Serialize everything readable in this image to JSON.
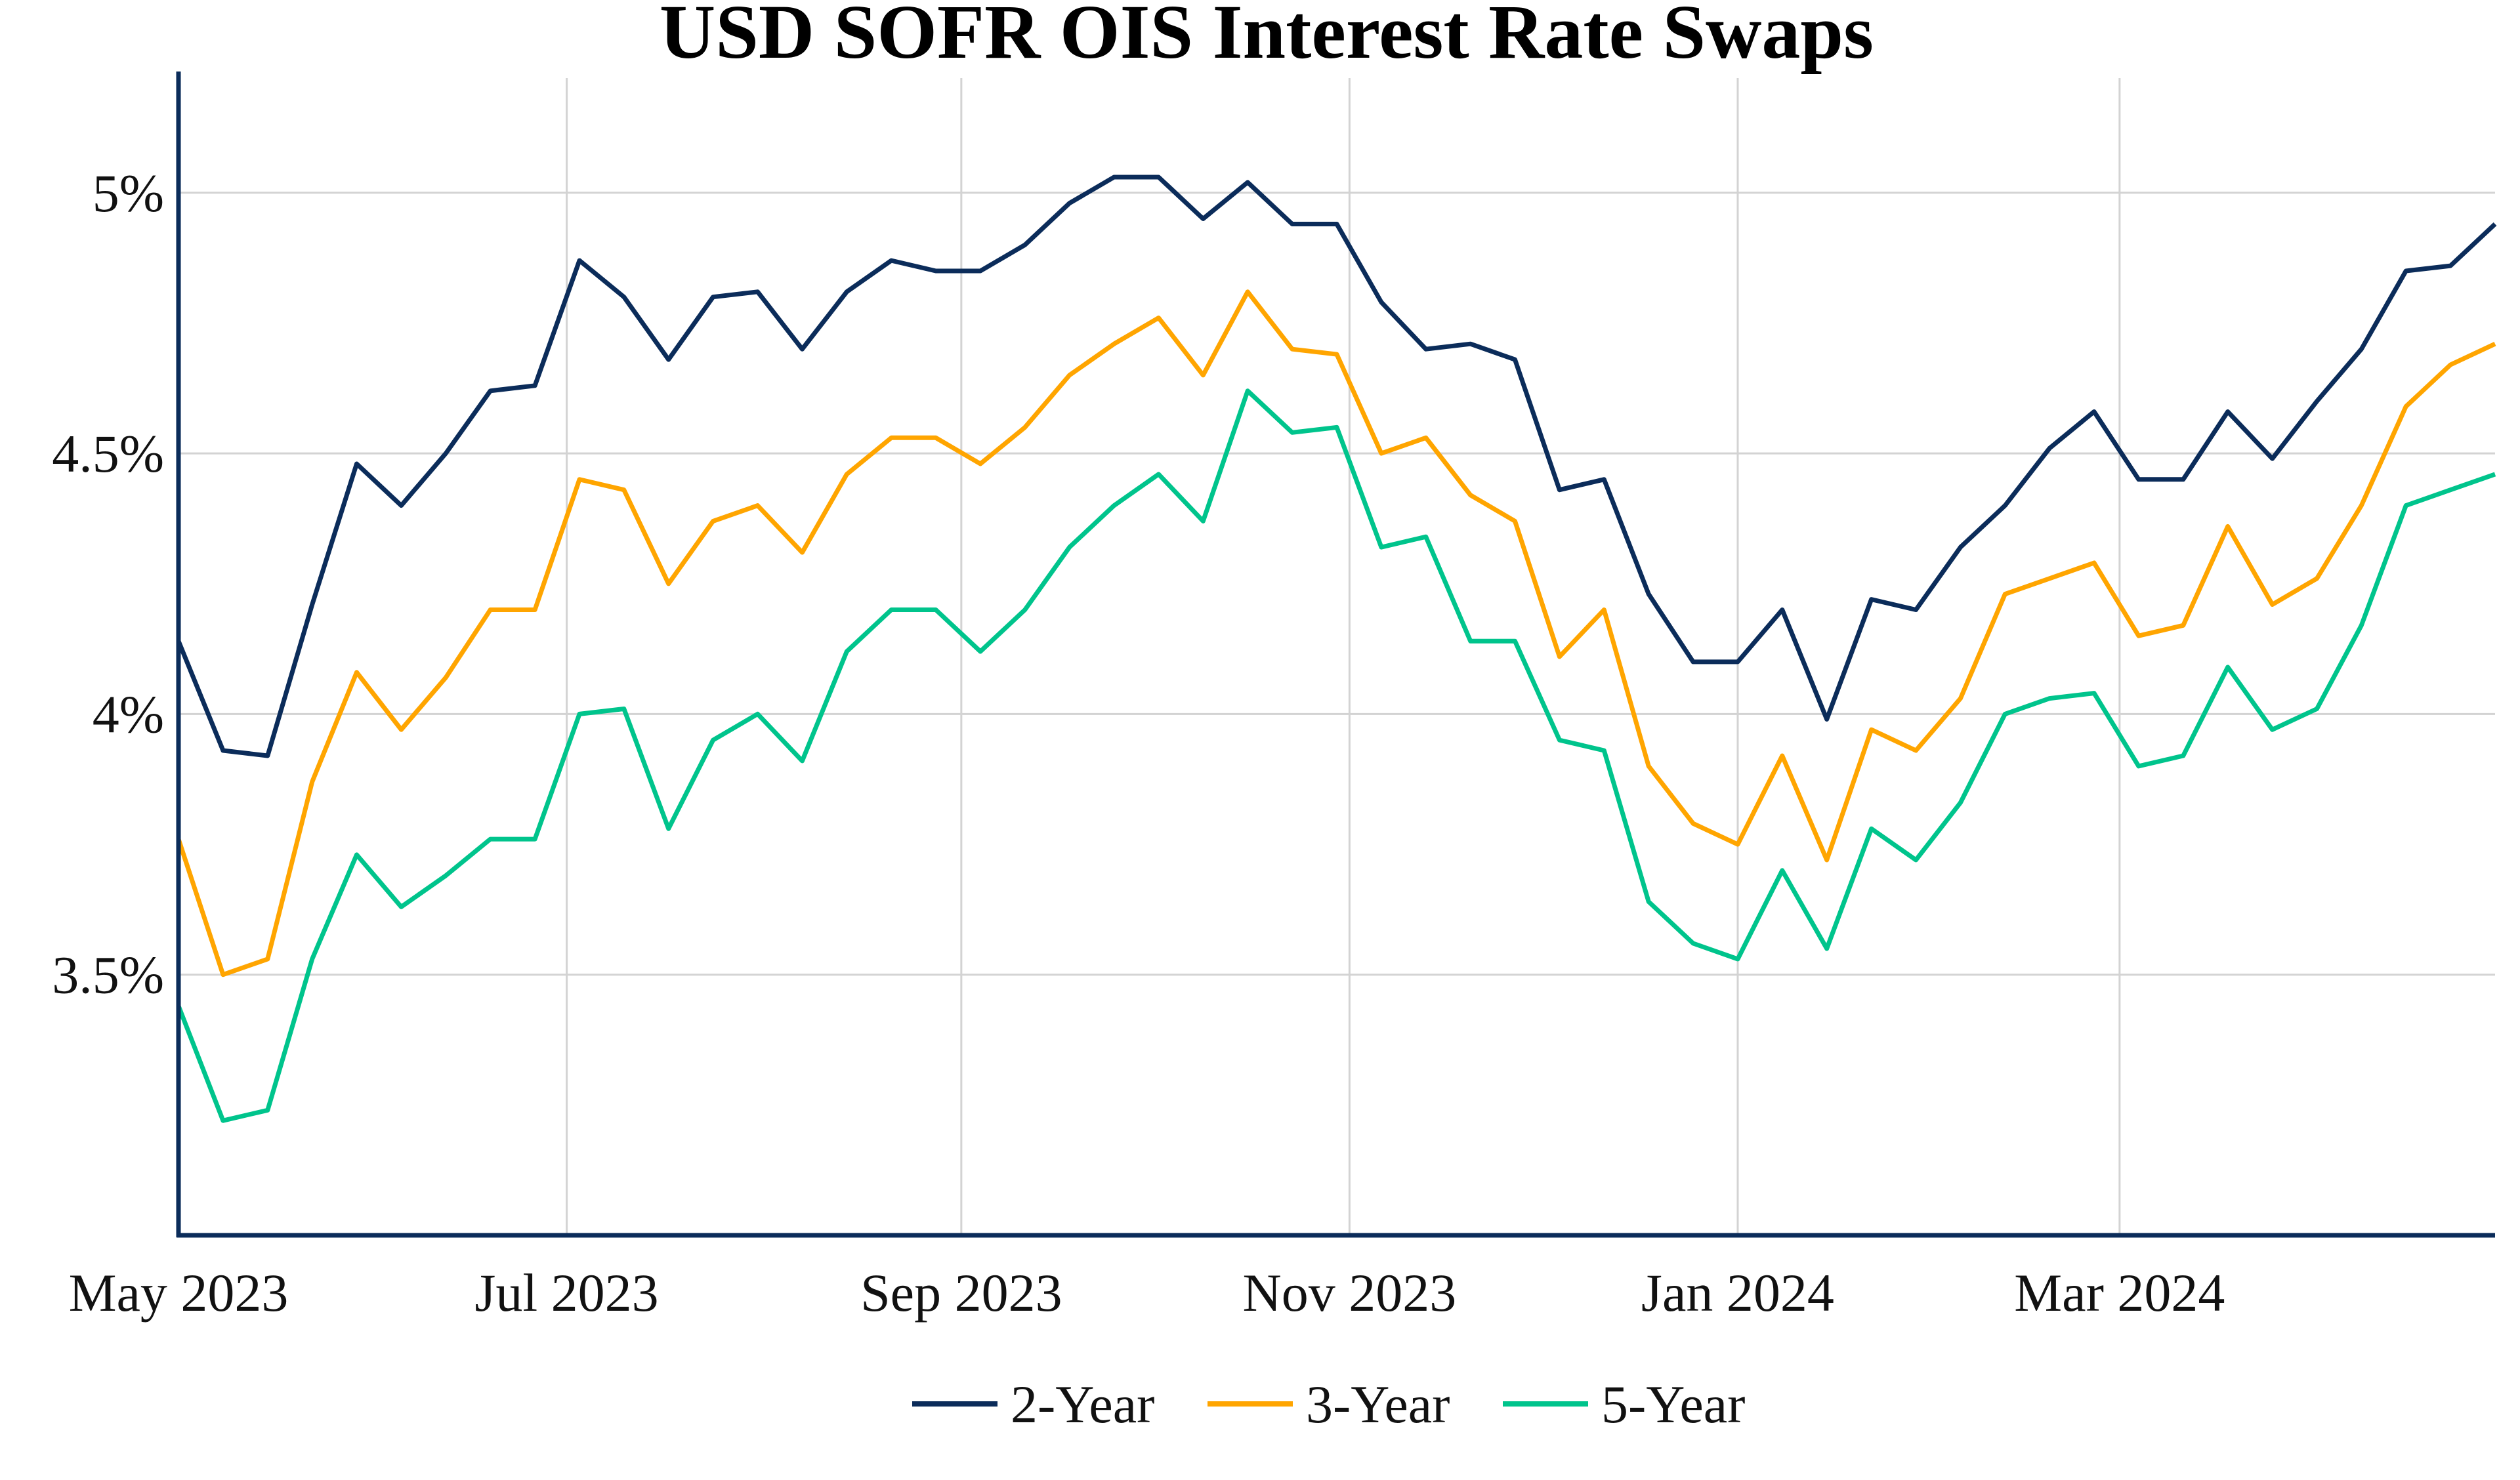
{
  "chart_data": {
    "type": "line",
    "title": "USD SOFR OIS Interest Rate Swaps",
    "xlabel": "",
    "ylabel": "",
    "ylim": [
      3.0,
      5.22
    ],
    "xlim": [
      "2023-05-01",
      "2024-04-29"
    ],
    "grid": true,
    "legend_placement": "bottom-center",
    "y_ticks": [
      3.5,
      4.0,
      4.5,
      5.0
    ],
    "y_tick_labels": [
      "3.5%",
      "4%",
      "4.5%",
      "5%"
    ],
    "x_ticks": [
      "2023-05-01",
      "2023-07-01",
      "2023-09-01",
      "2023-11-01",
      "2024-01-01",
      "2024-03-01"
    ],
    "x_tick_labels": [
      "May 2023",
      "Jul 2023",
      "Sep 2023",
      "Nov 2023",
      "Jan 2024",
      "Mar 2024"
    ],
    "x": [
      "2023-05-01",
      "2023-05-08",
      "2023-05-15",
      "2023-05-22",
      "2023-05-29",
      "2023-06-05",
      "2023-06-12",
      "2023-06-19",
      "2023-06-26",
      "2023-07-03",
      "2023-07-10",
      "2023-07-17",
      "2023-07-24",
      "2023-07-31",
      "2023-08-07",
      "2023-08-14",
      "2023-08-21",
      "2023-08-28",
      "2023-09-04",
      "2023-09-11",
      "2023-09-18",
      "2023-09-25",
      "2023-10-02",
      "2023-10-09",
      "2023-10-16",
      "2023-10-23",
      "2023-10-30",
      "2023-11-06",
      "2023-11-13",
      "2023-11-20",
      "2023-11-27",
      "2023-12-04",
      "2023-12-11",
      "2023-12-18",
      "2023-12-25",
      "2024-01-01",
      "2024-01-08",
      "2024-01-15",
      "2024-01-22",
      "2024-01-29",
      "2024-02-05",
      "2024-02-12",
      "2024-02-19",
      "2024-02-26",
      "2024-03-04",
      "2024-03-11",
      "2024-03-18",
      "2024-03-25",
      "2024-04-01",
      "2024-04-08",
      "2024-04-15",
      "2024-04-22",
      "2024-04-29"
    ],
    "series": [
      {
        "name": "2-Year",
        "color": "#0b2c5a",
        "values": [
          4.14,
          3.93,
          3.92,
          4.21,
          4.48,
          4.4,
          4.5,
          4.62,
          4.63,
          4.87,
          4.8,
          4.68,
          4.8,
          4.81,
          4.7,
          4.81,
          4.87,
          4.85,
          4.85,
          4.9,
          4.98,
          5.03,
          5.03,
          4.95,
          5.02,
          4.94,
          4.94,
          4.79,
          4.7,
          4.71,
          4.68,
          4.43,
          4.45,
          4.23,
          4.1,
          4.1,
          4.2,
          3.99,
          4.22,
          4.2,
          4.32,
          4.4,
          4.51,
          4.58,
          4.45,
          4.45,
          4.58,
          4.49,
          4.6,
          4.7,
          4.85,
          4.86,
          4.94
        ]
      },
      {
        "name": "3-Year",
        "color": "#ffa500",
        "values": [
          3.76,
          3.5,
          3.53,
          3.87,
          4.08,
          3.97,
          4.07,
          4.2,
          4.2,
          4.45,
          4.43,
          4.25,
          4.37,
          4.4,
          4.31,
          4.46,
          4.53,
          4.53,
          4.48,
          4.55,
          4.65,
          4.71,
          4.76,
          4.65,
          4.81,
          4.7,
          4.69,
          4.5,
          4.53,
          4.42,
          4.37,
          4.11,
          4.2,
          3.9,
          3.79,
          3.75,
          3.92,
          3.72,
          3.97,
          3.93,
          4.03,
          4.23,
          4.26,
          4.29,
          4.15,
          4.17,
          4.36,
          4.21,
          4.26,
          4.4,
          4.59,
          4.67,
          4.71
        ]
      },
      {
        "name": "5-Year",
        "color": "#00c48c",
        "values": [
          3.44,
          3.22,
          3.24,
          3.53,
          3.73,
          3.63,
          3.69,
          3.76,
          3.76,
          4.0,
          4.01,
          3.78,
          3.95,
          4.0,
          3.91,
          4.12,
          4.2,
          4.2,
          4.12,
          4.2,
          4.32,
          4.4,
          4.46,
          4.37,
          4.62,
          4.54,
          4.55,
          4.32,
          4.34,
          4.14,
          4.14,
          3.95,
          3.93,
          3.64,
          3.56,
          3.53,
          3.7,
          3.55,
          3.78,
          3.72,
          3.83,
          4.0,
          4.03,
          4.04,
          3.9,
          3.92,
          4.09,
          3.97,
          4.01,
          4.17,
          4.4,
          4.43,
          4.46
        ]
      }
    ],
    "axis_color": "#0b2c5a",
    "grid_color": "#d3d3d3"
  }
}
